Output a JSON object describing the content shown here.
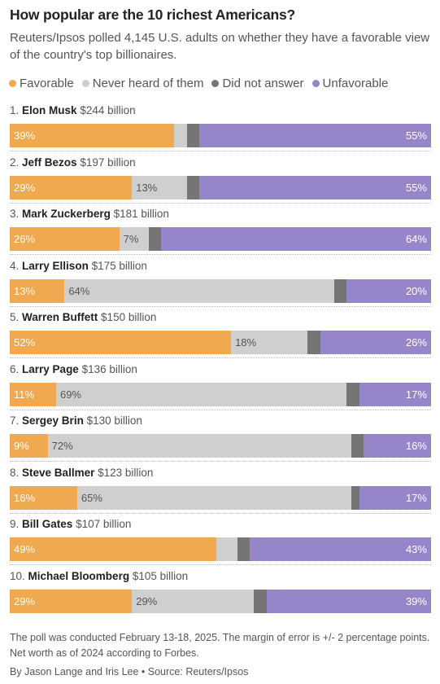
{
  "header": {
    "title": "How popular are the 10 richest Americans?",
    "subtitle": "Reuters/Ipsos polled 4,145 U.S. adults on whether they have a favorable view of the country's top billionaires."
  },
  "legend": [
    {
      "label": "Favorable",
      "color": "#f0a94e"
    },
    {
      "label": "Never heard of them",
      "color": "#cfcfcf"
    },
    {
      "label": "Did not answer",
      "color": "#757575"
    },
    {
      "label": "Unfavorable",
      "color": "#9685c9"
    }
  ],
  "chart_data": {
    "type": "bar",
    "orientation": "horizontal",
    "stacked": true,
    "unit": "%",
    "categories": [
      {
        "rank": "1.",
        "name": "Elon Musk",
        "worth": "$244 billion"
      },
      {
        "rank": "2.",
        "name": "Jeff Bezos",
        "worth": "$197 billion"
      },
      {
        "rank": "3.",
        "name": "Mark Zuckerberg",
        "worth": "$181 billion"
      },
      {
        "rank": "4.",
        "name": "Larry Ellison",
        "worth": "$175 billion"
      },
      {
        "rank": "5.",
        "name": "Warren Buffett",
        "worth": "$150 billion"
      },
      {
        "rank": "6.",
        "name": "Larry Page",
        "worth": "$136 billion"
      },
      {
        "rank": "7.",
        "name": "Sergey Brin",
        "worth": "$130 billion"
      },
      {
        "rank": "8.",
        "name": "Steve Ballmer",
        "worth": "$123 billion"
      },
      {
        "rank": "9.",
        "name": "Bill Gates",
        "worth": "$107 billion"
      },
      {
        "rank": "10.",
        "name": "Michael Bloomberg",
        "worth": "$105 billion"
      }
    ],
    "series": [
      {
        "name": "Favorable",
        "color": "#f0a94e",
        "values": [
          39,
          29,
          26,
          13,
          52,
          11,
          9,
          16,
          49,
          29
        ],
        "labels": [
          "39%",
          "29%",
          "26%",
          "13%",
          "52%",
          "11%",
          "9%",
          "16%",
          "49%",
          "29%"
        ]
      },
      {
        "name": "Never heard of them",
        "color": "#cfcfcf",
        "values": [
          3,
          13,
          7,
          64,
          18,
          69,
          72,
          65,
          5,
          29
        ],
        "labels": [
          "",
          "13%",
          "7%",
          "64%",
          "18%",
          "69%",
          "72%",
          "65%",
          "",
          "29%"
        ]
      },
      {
        "name": "Did not answer",
        "color": "#757575",
        "values": [
          3,
          3,
          3,
          3,
          3,
          3,
          3,
          2,
          3,
          3
        ],
        "labels": [
          "",
          "",
          "",
          "",
          "",
          "",
          "",
          "",
          "",
          ""
        ]
      },
      {
        "name": "Unfavorable",
        "color": "#9685c9",
        "values": [
          55,
          55,
          64,
          20,
          26,
          17,
          16,
          17,
          43,
          39
        ],
        "labels": [
          "55%",
          "55%",
          "64%",
          "20%",
          "26%",
          "17%",
          "16%",
          "17%",
          "43%",
          "39%"
        ]
      }
    ]
  },
  "footer": {
    "note": "The poll was conducted February 13-18, 2025. The margin of error is +/- 2 percentage points. Net worth as of 2024 according to Forbes.",
    "byline": "By Jason Lange and Iris Lee • Source: Reuters/Ipsos"
  }
}
